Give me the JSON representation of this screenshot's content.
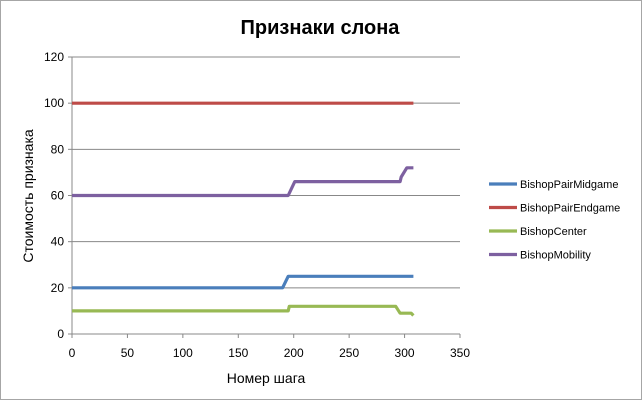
{
  "chart_data": {
    "type": "line",
    "title": "Признаки слона",
    "xlabel": "Номер шага",
    "ylabel": "Стоимость признака",
    "xlim": [
      0,
      350
    ],
    "ylim": [
      0,
      120
    ],
    "x_ticks": [
      0,
      50,
      100,
      150,
      200,
      250,
      300,
      350
    ],
    "y_ticks": [
      0,
      20,
      40,
      60,
      80,
      100,
      120
    ],
    "grid": "horizontal",
    "legend_position": "right",
    "series": [
      {
        "name": "BishopPairMidgame",
        "color": "#4a7ebb",
        "points": [
          [
            0,
            20
          ],
          [
            190,
            20
          ],
          [
            195,
            25
          ],
          [
            308,
            25
          ]
        ]
      },
      {
        "name": "BishopPairEndgame",
        "color": "#be4b48",
        "points": [
          [
            0,
            100
          ],
          [
            308,
            100
          ]
        ]
      },
      {
        "name": "BishopCenter",
        "color": "#98b954",
        "points": [
          [
            0,
            10
          ],
          [
            195,
            10
          ],
          [
            196,
            12
          ],
          [
            292,
            12
          ],
          [
            296,
            9
          ],
          [
            306,
            9
          ],
          [
            308,
            8
          ]
        ]
      },
      {
        "name": "BishopMobility",
        "color": "#7d60a0",
        "points": [
          [
            0,
            60
          ],
          [
            195,
            60
          ],
          [
            201,
            66
          ],
          [
            296,
            66
          ],
          [
            297,
            68
          ],
          [
            302,
            72
          ],
          [
            308,
            72
          ]
        ]
      }
    ]
  }
}
